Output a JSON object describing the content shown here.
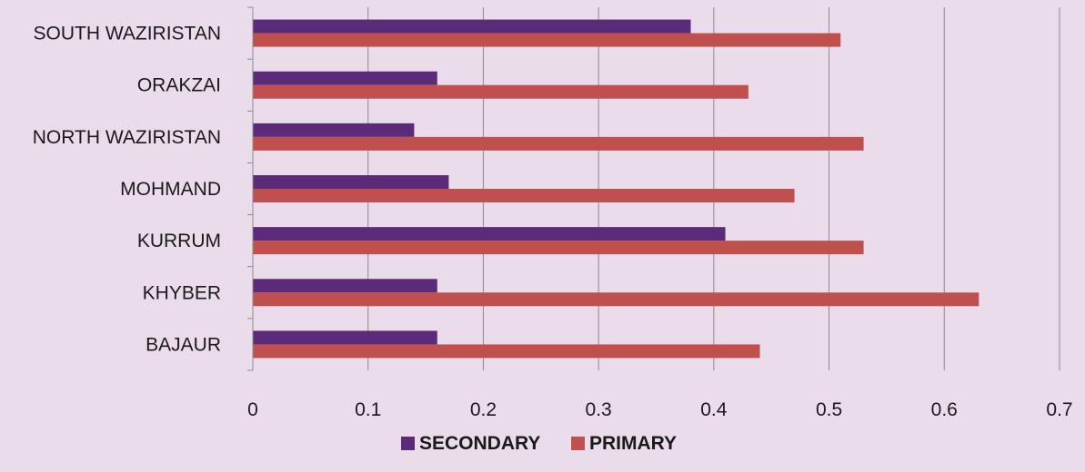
{
  "chart_data": {
    "type": "bar",
    "orientation": "horizontal",
    "categories": [
      "SOUTH WAZIRISTAN",
      "ORAKZAI",
      "NORTH WAZIRISTAN",
      "MOHMAND",
      "KURRUM",
      "KHYBER",
      "BAJAUR"
    ],
    "series": [
      {
        "name": "SECONDARY",
        "color": "#5b2a78",
        "values": [
          0.38,
          0.16,
          0.14,
          0.17,
          0.41,
          0.16,
          0.16
        ]
      },
      {
        "name": "PRIMARY",
        "color": "#c0504d",
        "values": [
          0.51,
          0.43,
          0.53,
          0.47,
          0.53,
          0.63,
          0.44
        ]
      }
    ],
    "xlim": [
      0,
      0.7
    ],
    "xticks": [
      "0",
      "0.1",
      "0.2",
      "0.3",
      "0.4",
      "0.5",
      "0.6",
      "0.7"
    ],
    "grid": "vertical",
    "legend_position": "bottom",
    "title": "",
    "xlabel": "",
    "ylabel": ""
  }
}
